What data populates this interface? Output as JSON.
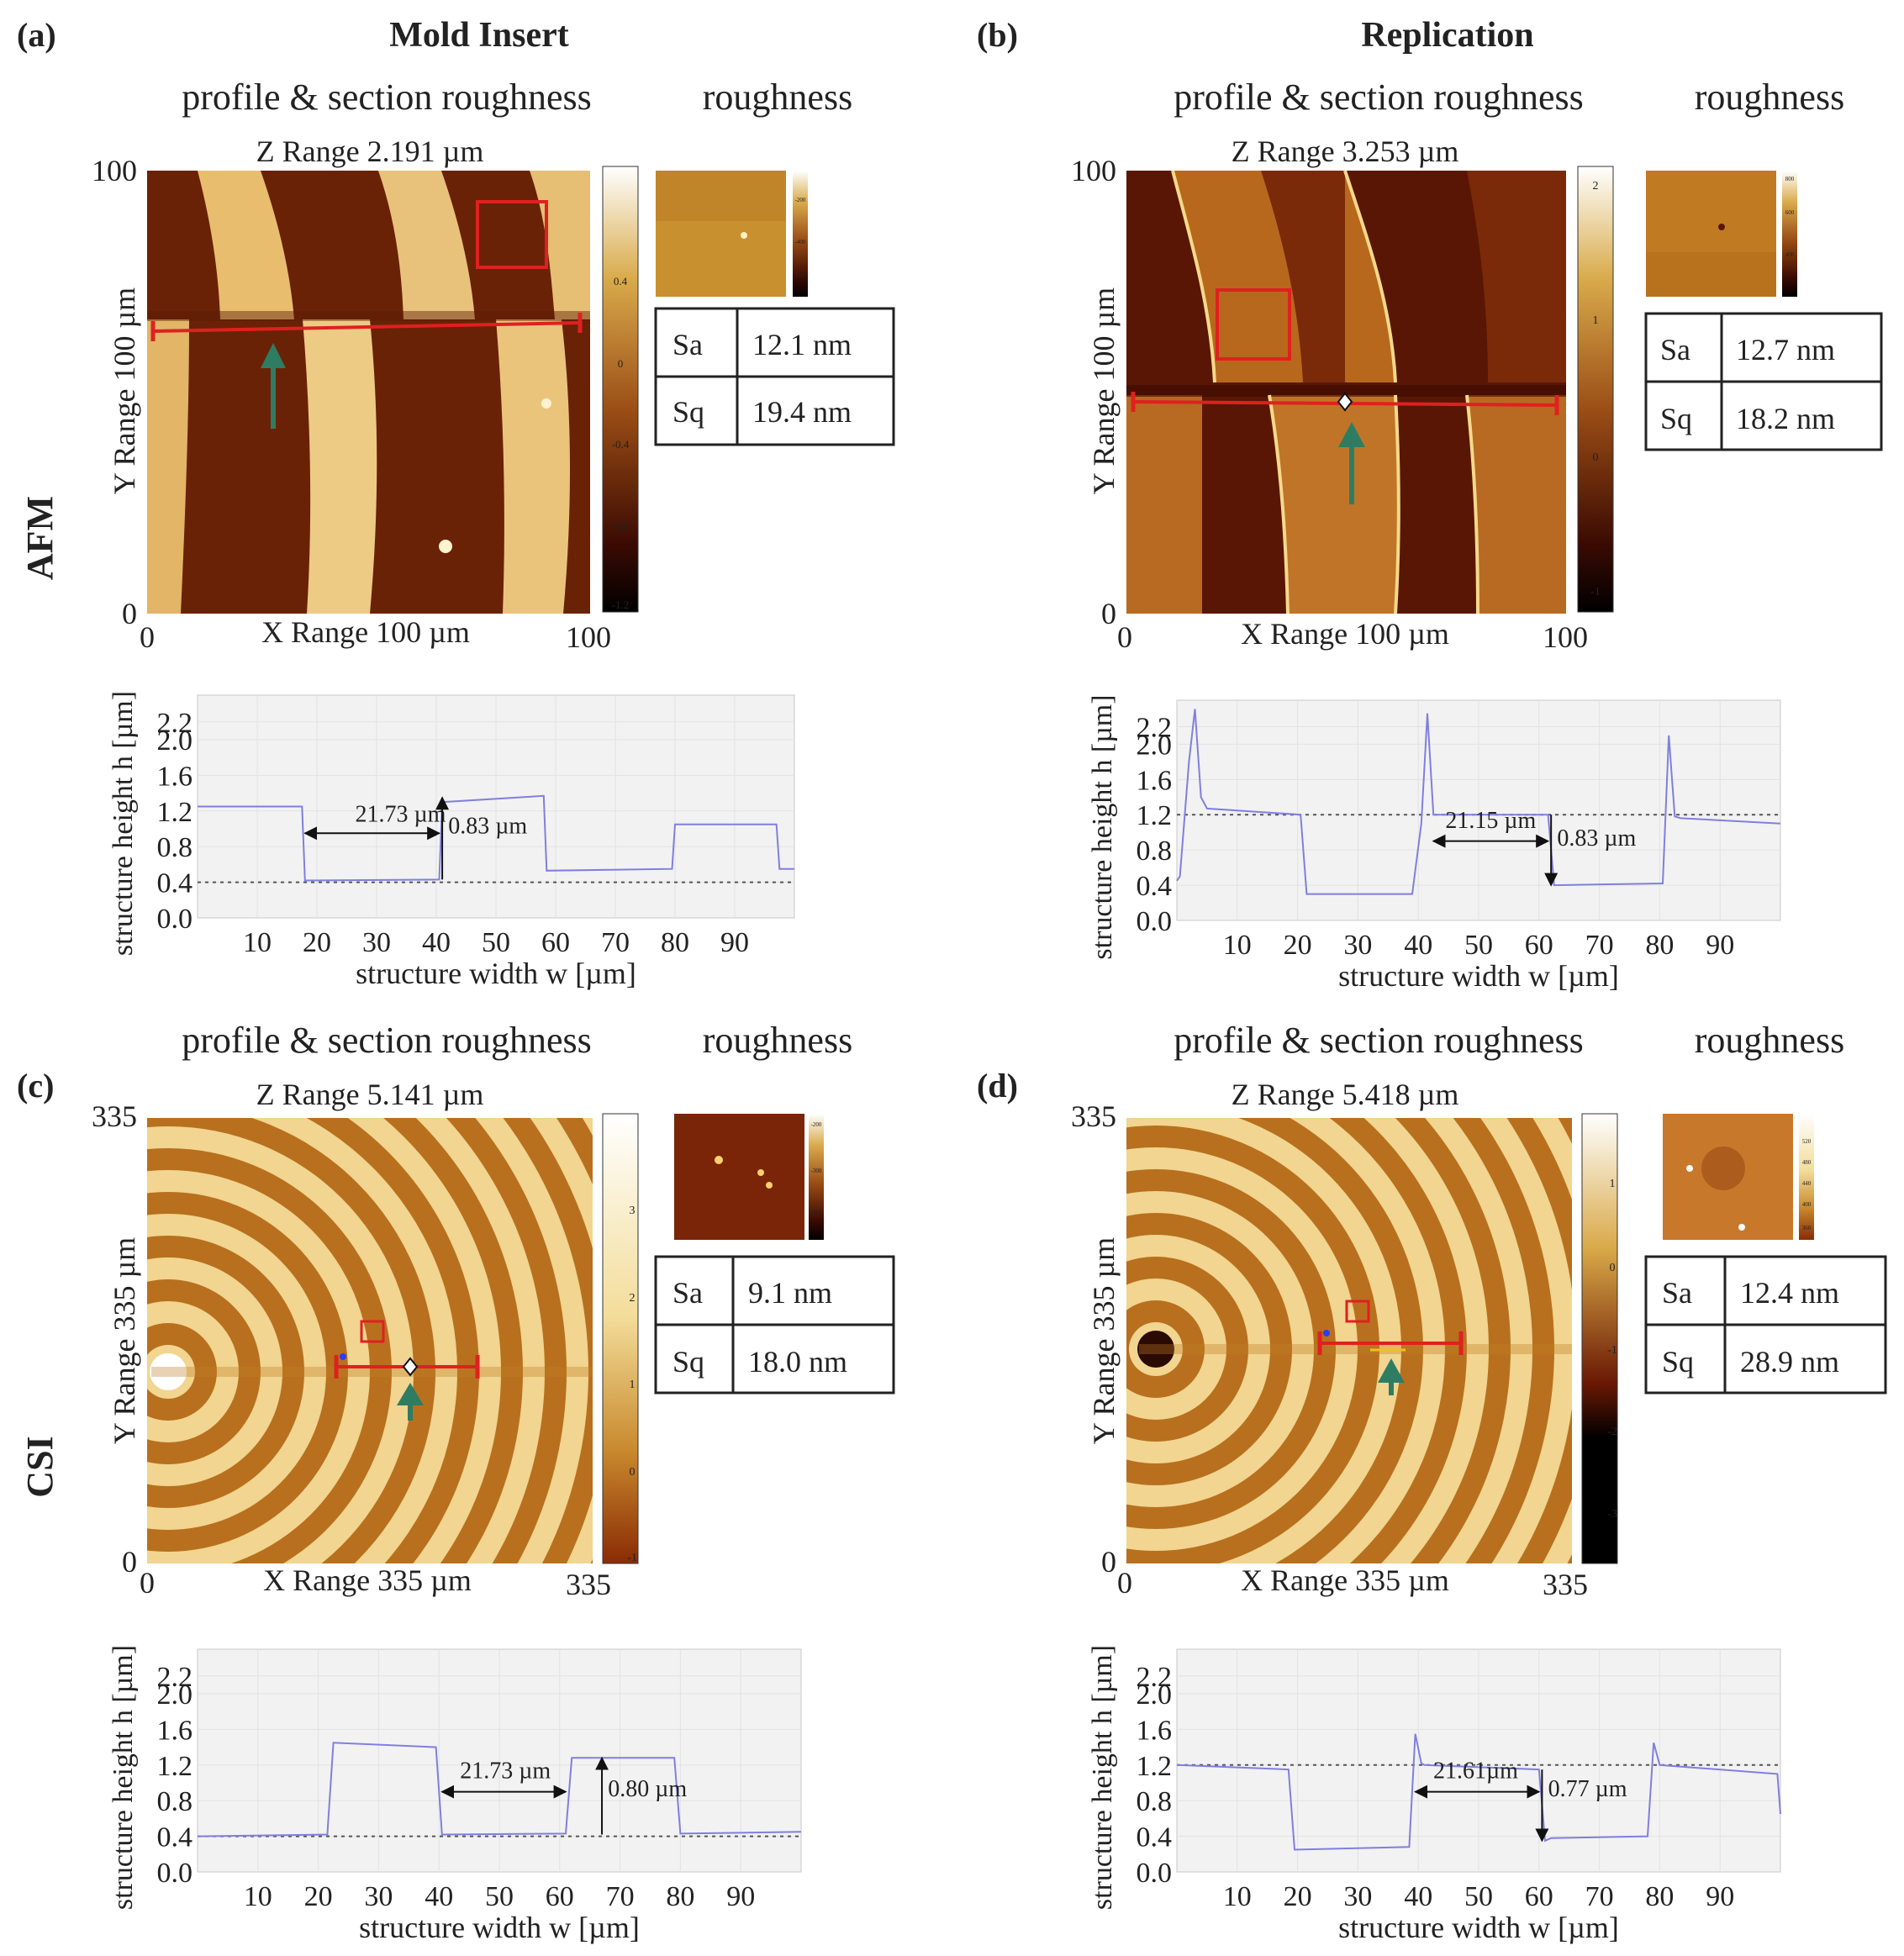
{
  "header": {
    "col_a_title": "Mold Insert",
    "col_b_title": "Replication",
    "row_afm_label": "AFM",
    "row_csi_label": "CSI",
    "subhead_profile": "profile & section roughness",
    "subhead_roughness": "roughness"
  },
  "panels": [
    {
      "label": "(a)",
      "z_range": "Z Range 2.191 µm",
      "y_range": "Y Range 100 µm",
      "x_range": "X Range 100 µm",
      "axis_max": "100",
      "axis_zero": "0",
      "colorbar_ticks": [
        "0.4",
        "0",
        "-0.4",
        "-0.8",
        "-1.2"
      ],
      "inset_ticks": [
        "-200",
        "-400",
        "-600"
      ],
      "roughness": {
        "sa_label": "Sa",
        "sa_value": "12.1 nm",
        "sq_label": "Sq",
        "sq_value": "19.4 nm"
      }
    },
    {
      "label": "(b)",
      "z_range": "Z Range 3.253 µm",
      "y_range": "Y Range 100 µm",
      "x_range": "X Range 100 µm",
      "axis_max": "100",
      "axis_zero": "0",
      "colorbar_ticks": [
        "2",
        "1",
        "0",
        "-1"
      ],
      "inset_ticks": [
        "800",
        "600",
        "400"
      ],
      "roughness": {
        "sa_label": "Sa",
        "sa_value": "12.7 nm",
        "sq_label": "Sq",
        "sq_value": "18.2 nm"
      }
    },
    {
      "label": "(c)",
      "z_range": "Z Range 5.141 µm",
      "y_range": "Y Range 335 µm",
      "x_range": "X Range 335 µm",
      "axis_max": "335",
      "axis_zero": "0",
      "colorbar_ticks": [
        "3",
        "2",
        "1",
        "0",
        "-1"
      ],
      "inset_ticks": [
        "-200",
        "-300",
        "-400"
      ],
      "roughness": {
        "sa_label": "Sa",
        "sa_value": "9.1 nm",
        "sq_label": "Sq",
        "sq_value": "18.0 nm"
      }
    },
    {
      "label": "(d)",
      "z_range": "Z Range 5.418 µm",
      "y_range": "Y Range 335 µm",
      "x_range": "X Range 335 µm",
      "axis_max": "335",
      "axis_zero": "0",
      "colorbar_ticks": [
        "1",
        "0",
        "-1",
        "-2",
        "-3"
      ],
      "inset_ticks": [
        "520",
        "480",
        "440",
        "400",
        "360"
      ],
      "roughness": {
        "sa_label": "Sa",
        "sa_value": "12.4 nm",
        "sq_label": "Sq",
        "sq_value": "28.9 nm"
      }
    }
  ],
  "chart_data": [
    {
      "type": "line",
      "panel": "(a)",
      "xlabel": "structure width w [µm]",
      "ylabel": "structure height h [µm]",
      "xticks": [
        "10",
        "20",
        "30",
        "40",
        "50",
        "60",
        "70",
        "80",
        "90"
      ],
      "yticks": [
        "0.0",
        "0.4",
        "0.8",
        "1.2",
        "1.6",
        "2.0",
        "2.2"
      ],
      "xlim": [
        0,
        100
      ],
      "ylim": [
        0,
        2.5
      ],
      "reference_line_y": 0.4,
      "x": [
        0,
        17.5,
        18,
        40.5,
        41,
        58,
        58.5,
        79.5,
        80,
        97,
        97.5,
        100
      ],
      "y": [
        1.25,
        1.25,
        0.42,
        0.43,
        1.3,
        1.37,
        0.53,
        0.55,
        1.05,
        1.05,
        0.55,
        0.55
      ],
      "annotations": [
        "21.73 µm",
        "0.83 µm"
      ]
    },
    {
      "type": "line",
      "panel": "(b)",
      "xlabel": "structure width w [µm]",
      "ylabel": "structure height h [µm]",
      "xticks": [
        "10",
        "20",
        "30",
        "40",
        "50",
        "60",
        "70",
        "80",
        "90"
      ],
      "yticks": [
        "0.0",
        "0.4",
        "0.8",
        "1.2",
        "1.6",
        "2.0",
        "2.2"
      ],
      "xlim": [
        0,
        100
      ],
      "ylim": [
        0,
        2.5
      ],
      "reference_line_y": 1.2,
      "x": [
        0,
        0.5,
        2,
        3,
        4,
        5,
        20.5,
        21.5,
        39,
        40.5,
        41.5,
        42.5,
        61.5,
        62.5,
        80.5,
        81.5,
        82.5,
        83.5,
        100
      ],
      "y": [
        0.45,
        0.5,
        1.8,
        2.4,
        1.4,
        1.27,
        1.2,
        0.3,
        0.3,
        1.1,
        2.35,
        1.2,
        1.2,
        0.4,
        0.42,
        2.1,
        1.18,
        1.16,
        1.1
      ],
      "annotations": [
        "21.15 µm",
        "0.83 µm"
      ]
    },
    {
      "type": "line",
      "panel": "(c)",
      "xlabel": "structure width w [µm]",
      "ylabel": "structure height h [µm]",
      "xticks": [
        "10",
        "20",
        "30",
        "40",
        "50",
        "60",
        "70",
        "80",
        "90"
      ],
      "yticks": [
        "0.0",
        "0.4",
        "0.8",
        "1.2",
        "1.6",
        "2.0",
        "2.2"
      ],
      "xlim": [
        0,
        100
      ],
      "ylim": [
        0,
        2.5
      ],
      "reference_line_y": 0.4,
      "x": [
        0,
        21.5,
        22.5,
        39.5,
        40.5,
        61,
        62,
        79,
        80,
        100
      ],
      "y": [
        0.4,
        0.42,
        1.45,
        1.4,
        0.42,
        0.43,
        1.28,
        1.28,
        0.43,
        0.45
      ],
      "annotations": [
        "21.73 µm",
        "0.80 µm"
      ]
    },
    {
      "type": "line",
      "panel": "(d)",
      "xlabel": "structure width w [µm]",
      "ylabel": "structure height h [µm]",
      "xticks": [
        "10",
        "20",
        "30",
        "40",
        "50",
        "60",
        "70",
        "80",
        "90"
      ],
      "yticks": [
        "0.0",
        "0.4",
        "0.8",
        "1.2",
        "1.6",
        "2.0",
        "2.2"
      ],
      "xlim": [
        0,
        100
      ],
      "ylim": [
        0,
        2.5
      ],
      "reference_line_y": 1.2,
      "x": [
        0,
        18.5,
        19.5,
        38.5,
        39.5,
        40.5,
        41,
        60,
        61,
        62,
        78,
        79,
        80,
        99.5,
        100
      ],
      "y": [
        1.2,
        1.15,
        0.25,
        0.28,
        1.55,
        1.22,
        1.2,
        1.15,
        0.35,
        0.38,
        0.4,
        1.45,
        1.2,
        1.1,
        0.65
      ],
      "annotations": [
        "21.61µm",
        "0.77 µm"
      ]
    }
  ]
}
